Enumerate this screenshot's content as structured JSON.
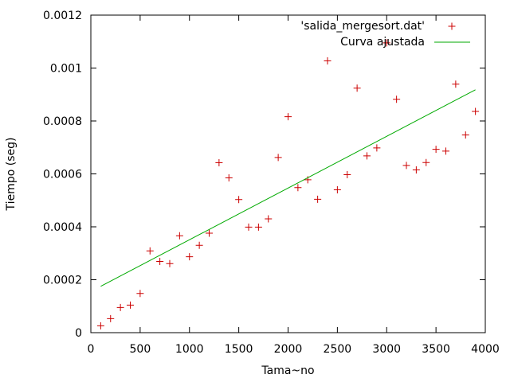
{
  "chart_data": {
    "type": "scatter",
    "xlabel": "Tama~no",
    "ylabel": "Tiempo (seg)",
    "xlim": [
      0,
      4000
    ],
    "ylim": [
      0,
      0.0012
    ],
    "grid": false,
    "legend_position": "top-right",
    "x_ticks": [
      "0",
      "500",
      "1000",
      "1500",
      "2000",
      "2500",
      "3000",
      "3500",
      "4000"
    ],
    "y_ticks": [
      "0",
      "0.0002",
      "0.0004",
      "0.0006",
      "0.0008",
      "0.001",
      "0.0012"
    ],
    "x_tick_values": [
      0,
      500,
      1000,
      1500,
      2000,
      2500,
      3000,
      3500,
      4000
    ],
    "y_tick_values": [
      0,
      0.0002,
      0.0004,
      0.0006,
      0.0008,
      0.001,
      0.0012
    ],
    "series": [
      {
        "name": "'salida_mergesort.dat'",
        "kind": "points",
        "color": "#cc0000",
        "x": [
          100,
          200,
          300,
          400,
          500,
          600,
          700,
          800,
          900,
          1000,
          1100,
          1200,
          1300,
          1400,
          1500,
          1600,
          1700,
          1800,
          1900,
          2000,
          2100,
          2200,
          2300,
          2400,
          2500,
          2600,
          2700,
          2800,
          2900,
          3000,
          3100,
          3200,
          3300,
          3400,
          3500,
          3600,
          3700,
          3800,
          3900
        ],
        "y": [
          2.6e-05,
          5.3e-05,
          9.5e-05,
          0.000104,
          0.000148,
          0.000309,
          0.000269,
          0.000261,
          0.000366,
          0.000287,
          0.00033,
          0.000376,
          0.000642,
          0.000585,
          0.000503,
          0.000399,
          0.000399,
          0.00043,
          0.000662,
          0.000816,
          0.000548,
          0.000578,
          0.000504,
          0.001027,
          0.00054,
          0.000597,
          0.000924,
          0.000668,
          0.000698,
          0.001095,
          0.000882,
          0.000632,
          0.000615,
          0.000643,
          0.000693,
          0.000686,
          0.000939,
          0.000747,
          0.000836
        ]
      },
      {
        "name": "Curva ajustada",
        "kind": "line",
        "color": "#00aa00",
        "x": [
          100,
          3900
        ],
        "y": [
          0.000175,
          0.000918
        ]
      }
    ]
  }
}
